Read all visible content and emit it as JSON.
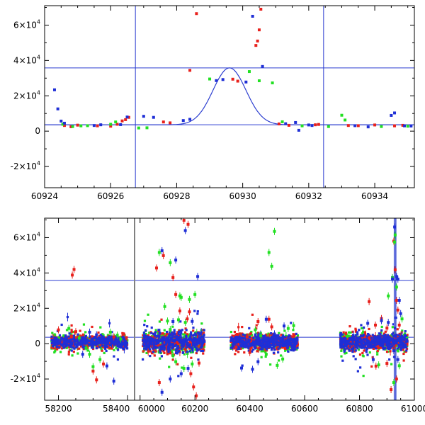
{
  "colors": {
    "red": "#e8211c",
    "green": "#22e022",
    "blue": "#1f2fd6",
    "guide": "#2c3ed0",
    "axis": "#000000"
  },
  "chart_data": [
    {
      "type": "scatter",
      "title": "",
      "xlabel": "",
      "ylabel": "",
      "xlim": [
        60924,
        60935.2
      ],
      "ylim": [
        -32000,
        71000
      ],
      "x_ticks": [
        {
          "value": 60924,
          "label": "60924"
        },
        {
          "value": 60926,
          "label": "60926"
        },
        {
          "value": 60928,
          "label": "60928"
        },
        {
          "value": 60930,
          "label": "60930"
        },
        {
          "value": 60932,
          "label": "60932"
        },
        {
          "value": 60934,
          "label": "60934"
        }
      ],
      "y_ticks": [
        {
          "value": -20000,
          "mantissa": "-2",
          "times": "×10",
          "exp": "4"
        },
        {
          "value": 0,
          "mantissa": "0",
          "times": "",
          "exp": ""
        },
        {
          "value": 20000,
          "mantissa": "2",
          "times": "×10",
          "exp": "4"
        },
        {
          "value": 40000,
          "mantissa": "4",
          "times": "×10",
          "exp": "4"
        },
        {
          "value": 60000,
          "mantissa": "6",
          "times": "×10",
          "exp": "4"
        }
      ],
      "hlines": [
        35800,
        3600
      ],
      "vlines": [
        60926.75,
        60932.45
      ],
      "model": {
        "type": "gaussian",
        "center": 60929.6,
        "sigma": 0.5,
        "amplitude": 32200,
        "baseline": 3600
      },
      "series": [
        {
          "name": "red",
          "color": "red",
          "points": [
            [
              60924.6,
              3200
            ],
            [
              60924.8,
              2500
            ],
            [
              60925.0,
              3400
            ],
            [
              60925.6,
              3000
            ],
            [
              60926.0,
              2800
            ],
            [
              60926.2,
              3900
            ],
            [
              60926.35,
              5800
            ],
            [
              60926.45,
              6500
            ],
            [
              60926.55,
              7800
            ],
            [
              60927.6,
              5200
            ],
            [
              60927.8,
              4700
            ],
            [
              60928.4,
              34400
            ],
            [
              60928.6,
              66500
            ],
            [
              60929.7,
              29400
            ],
            [
              60929.85,
              28300
            ],
            [
              60930.4,
              48500
            ],
            [
              60930.45,
              51000
            ],
            [
              60930.5,
              57300
            ],
            [
              60930.55,
              69000
            ],
            [
              60931.1,
              4100
            ],
            [
              60931.4,
              3300
            ],
            [
              60932.2,
              3600
            ],
            [
              60932.3,
              3800
            ],
            [
              60933.2,
              3200
            ],
            [
              60933.5,
              3100
            ],
            [
              60934.0,
              3500
            ],
            [
              60934.6,
              3000
            ],
            [
              60934.85,
              3300
            ]
          ]
        },
        {
          "name": "green",
          "color": "green",
          "points": [
            [
              60924.55,
              3900
            ],
            [
              60924.85,
              2600
            ],
            [
              60925.1,
              3000
            ],
            [
              60925.3,
              3100
            ],
            [
              60926.0,
              3900
            ],
            [
              60926.15,
              5200
            ],
            [
              60926.85,
              1800
            ],
            [
              60927.1,
              1900
            ],
            [
              60929.0,
              29500
            ],
            [
              60930.2,
              33700
            ],
            [
              60930.5,
              28500
            ],
            [
              60930.9,
              27300
            ],
            [
              60931.2,
              5300
            ],
            [
              60931.8,
              3000
            ],
            [
              60932.6,
              2600
            ],
            [
              60933.0,
              9000
            ],
            [
              60933.1,
              6300
            ],
            [
              60934.2,
              2600
            ],
            [
              60935.0,
              2800
            ]
          ]
        },
        {
          "name": "blue",
          "color": "blue",
          "points": [
            [
              60924.3,
              23400
            ],
            [
              60924.4,
              12600
            ],
            [
              60924.5,
              5700
            ],
            [
              60924.6,
              4500
            ],
            [
              60925.5,
              3200
            ],
            [
              60925.7,
              3600
            ],
            [
              60926.3,
              3700
            ],
            [
              60926.5,
              8000
            ],
            [
              60927.0,
              8400
            ],
            [
              60927.3,
              7800
            ],
            [
              60928.2,
              6000
            ],
            [
              60928.4,
              6700
            ],
            [
              60929.2,
              28600
            ],
            [
              60929.4,
              29200
            ],
            [
              60930.1,
              27800
            ],
            [
              60930.3,
              65000
            ],
            [
              60930.6,
              36600
            ],
            [
              60931.3,
              4200
            ],
            [
              60931.6,
              4900
            ],
            [
              60931.7,
              500
            ],
            [
              60932.0,
              3500
            ],
            [
              60932.1,
              3200
            ],
            [
              60933.4,
              3100
            ],
            [
              60933.8,
              2400
            ],
            [
              60934.5,
              8900
            ],
            [
              60934.6,
              10300
            ],
            [
              60934.9,
              3000
            ],
            [
              60935.1,
              2900
            ]
          ]
        }
      ]
    },
    {
      "type": "scatter",
      "title": "",
      "xlabel": "",
      "ylabel": "",
      "broken_x_axis": true,
      "segments": [
        {
          "xlim": [
            58160,
            58420
          ],
          "ticks": [
            {
              "value": 58200,
              "label": "58200"
            },
            {
              "value": 58400,
              "label": "58400"
            }
          ]
        },
        {
          "xlim": [
            59980,
            61000
          ],
          "ticks": [
            {
              "value": 60000,
              "label": "60000"
            },
            {
              "value": 60200,
              "label": "60200"
            },
            {
              "value": 60400,
              "label": "60400"
            },
            {
              "value": 60600,
              "label": "60600"
            },
            {
              "value": 60800,
              "label": "60800"
            },
            {
              "value": 61000,
              "label": "61000"
            }
          ]
        }
      ],
      "ylim": [
        -32000,
        71000
      ],
      "y_ticks": [
        {
          "value": -20000,
          "mantissa": "-2",
          "times": "×10",
          "exp": "4"
        },
        {
          "value": 0,
          "mantissa": "0",
          "times": "",
          "exp": ""
        },
        {
          "value": 20000,
          "mantissa": "2",
          "times": "×10",
          "exp": "4"
        },
        {
          "value": 40000,
          "mantissa": "4",
          "times": "×10",
          "exp": "4"
        },
        {
          "value": 60000,
          "mantissa": "6",
          "times": "×10",
          "exp": "4"
        }
      ],
      "hlines": [
        35800,
        3600
      ],
      "vlines": [
        60926.75,
        60932.45
      ],
      "clusters": [
        {
          "segment": 0,
          "x0": 58180,
          "x1": 58400,
          "spread": 1800
        },
        {
          "segment": 1,
          "x0": 60010,
          "x1": 60235,
          "spread": 2800
        },
        {
          "segment": 1,
          "x0": 60330,
          "x1": 60575,
          "spread": 2000
        },
        {
          "segment": 1,
          "x0": 60730,
          "x1": 60975,
          "spread": 2200
        }
      ],
      "series": [
        {
          "name": "red",
          "color": "red",
          "points": [
            [
              58240,
              38800
            ],
            [
              58245,
              42000
            ],
            [
              58200,
              7800
            ],
            [
              58250,
              6800
            ],
            [
              58300,
              -15500
            ],
            [
              58310,
              -20500
            ],
            [
              58330,
              -11500
            ],
            [
              58360,
              3800
            ],
            [
              60060,
              42800
            ],
            [
              60085,
              49800
            ],
            [
              60120,
              37400
            ],
            [
              60130,
              27800
            ],
            [
              60145,
              18500
            ],
            [
              60160,
              69800
            ],
            [
              60175,
              67500
            ],
            [
              60172,
              14000
            ],
            [
              60180,
              18000
            ],
            [
              60185,
              -17000
            ],
            [
              60195,
              -24500
            ],
            [
              60205,
              -29500
            ],
            [
              60215,
              -11000
            ],
            [
              60070,
              -22000
            ],
            [
              60430,
              12500
            ],
            [
              60470,
              13800
            ],
            [
              60480,
              9500
            ],
            [
              60390,
              3900
            ],
            [
              60400,
              -5000
            ],
            [
              60350,
              -2000
            ],
            [
              60835,
              23800
            ],
            [
              60858,
              10500
            ],
            [
              60880,
              14200
            ],
            [
              60900,
              8800
            ],
            [
              60925,
              58000
            ],
            [
              60930,
              41800
            ],
            [
              60935,
              24500
            ],
            [
              60940,
              19000
            ],
            [
              60945,
              10500
            ],
            [
              60860,
              -12700
            ],
            [
              60900,
              -11200
            ],
            [
              60915,
              -26000
            ],
            [
              60935,
              -20000
            ],
            [
              60925,
              -4000
            ]
          ]
        },
        {
          "name": "green",
          "color": "green",
          "points": [
            [
              58230,
              8600
            ],
            [
              58260,
              3200
            ],
            [
              58280,
              -2500
            ],
            [
              58290,
              -6000
            ],
            [
              58300,
              -13000
            ],
            [
              58320,
              -9000
            ],
            [
              58350,
              6500
            ],
            [
              58370,
              4800
            ],
            [
              58380,
              2600
            ],
            [
              60070,
              51600
            ],
            [
              60110,
              45800
            ],
            [
              60140,
              13500
            ],
            [
              60145,
              27000
            ],
            [
              60150,
              26200
            ],
            [
              60165,
              12000
            ],
            [
              60180,
              25000
            ],
            [
              60200,
              27800
            ],
            [
              60090,
              21000
            ],
            [
              60100,
              12800
            ],
            [
              60110,
              8000
            ],
            [
              60120,
              -6800
            ],
            [
              60130,
              -10200
            ],
            [
              60160,
              -14000
            ],
            [
              60190,
              -11500
            ],
            [
              60490,
              63500
            ],
            [
              60470,
              51600
            ],
            [
              60480,
              43800
            ],
            [
              60420,
              7800
            ],
            [
              60440,
              4500
            ],
            [
              60460,
              -6000
            ],
            [
              60500,
              -12300
            ],
            [
              60520,
              -8700
            ],
            [
              60540,
              8600
            ],
            [
              60560,
              10200
            ],
            [
              60930,
              61500
            ],
            [
              60928,
              57500
            ],
            [
              60935,
              32000
            ],
            [
              60905,
              27000
            ],
            [
              60920,
              37400
            ],
            [
              60870,
              -12000
            ],
            [
              60945,
              -12500
            ],
            [
              60925,
              -22000
            ],
            [
              60955,
              14000
            ]
          ]
        },
        {
          "name": "blue",
          "color": "blue",
          "points": [
            [
              58270,
              -6000
            ],
            [
              58340,
              -12600
            ],
            [
              58360,
              -21200
            ],
            [
              58290,
              6500
            ],
            [
              58310,
              5000
            ],
            [
              60080,
              52600
            ],
            [
              60130,
              47300
            ],
            [
              60165,
              64000
            ],
            [
              60210,
              38000
            ],
            [
              60080,
              -27500
            ],
            [
              60110,
              -20000
            ],
            [
              60150,
              -17000
            ],
            [
              60175,
              -14000
            ],
            [
              60120,
              12500
            ],
            [
              60190,
              12600
            ],
            [
              60370,
              -13800
            ],
            [
              60410,
              -14500
            ],
            [
              60430,
              -10200
            ],
            [
              60460,
              13800
            ],
            [
              60490,
              5500
            ],
            [
              60525,
              10000
            ],
            [
              60830,
              11500
            ],
            [
              60850,
              -9000
            ],
            [
              60880,
              13000
            ],
            [
              60905,
              12000
            ],
            [
              60920,
              36500
            ],
            [
              60928,
              66000
            ],
            [
              60935,
              38000
            ],
            [
              60940,
              36500
            ],
            [
              60950,
              17000
            ],
            [
              60945,
              24500
            ],
            [
              60925,
              -4000
            ],
            [
              60940,
              -9000
            ]
          ]
        }
      ]
    }
  ]
}
